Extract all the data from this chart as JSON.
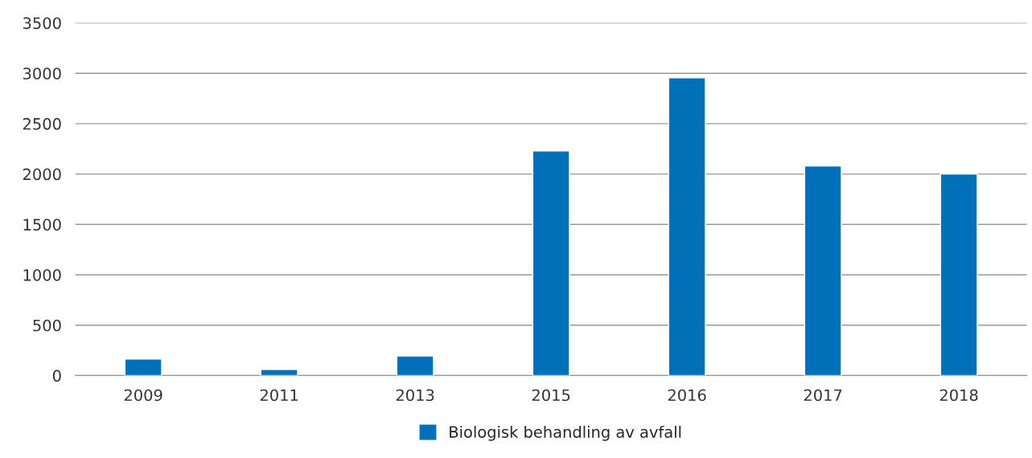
{
  "chart_data": {
    "type": "bar",
    "categories": [
      "2009",
      "2011",
      "2013",
      "2015",
      "2016",
      "2017",
      "2018"
    ],
    "series": [
      {
        "name": "Biologisk behandling av avfall",
        "color": "#0070b8",
        "values": [
          165,
          60,
          195,
          2230,
          2955,
          2080,
          2000
        ]
      }
    ],
    "ylim": [
      0,
      3500
    ],
    "yticks": [
      0,
      500,
      1000,
      1500,
      2000,
      2500,
      3000,
      3500
    ],
    "grid": "y",
    "legend": "bottom"
  }
}
